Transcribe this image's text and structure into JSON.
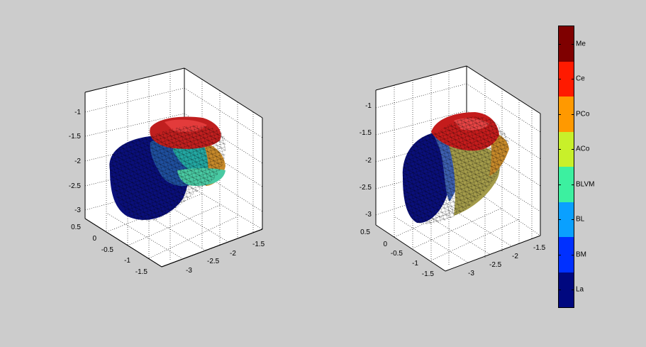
{
  "figure": {
    "background": "#cccccc",
    "plots": [
      {
        "z_ticks": [
          "-1",
          "-1.5",
          "-2",
          "-2.5",
          "-3"
        ],
        "x_ticks": [
          "0.5",
          "0",
          "-0.5",
          "-1",
          "-1.5"
        ],
        "y_ticks": [
          "-3",
          "-2.5",
          "-2",
          "-1.5"
        ]
      },
      {
        "z_ticks": [
          "-1",
          "-1.5",
          "-2",
          "-2.5",
          "-3"
        ],
        "x_ticks": [
          "0.5",
          "0",
          "-0.5",
          "-1",
          "-1.5"
        ],
        "y_ticks": [
          "-3",
          "-2.5",
          "-2",
          "-1.5"
        ]
      }
    ]
  },
  "colorbar": {
    "regions": [
      {
        "label": "Me",
        "color": "#7f0000"
      },
      {
        "label": "Ce",
        "color": "#ff1a00"
      },
      {
        "label": "PCo",
        "color": "#ff9900"
      },
      {
        "label": "ACo",
        "color": "#c8f02a"
      },
      {
        "label": "BLVM",
        "color": "#3cf0a0"
      },
      {
        "label": "BL",
        "color": "#0aa0ff"
      },
      {
        "label": "BM",
        "color": "#0030ff"
      },
      {
        "label": "La",
        "color": "#00087f"
      }
    ]
  }
}
